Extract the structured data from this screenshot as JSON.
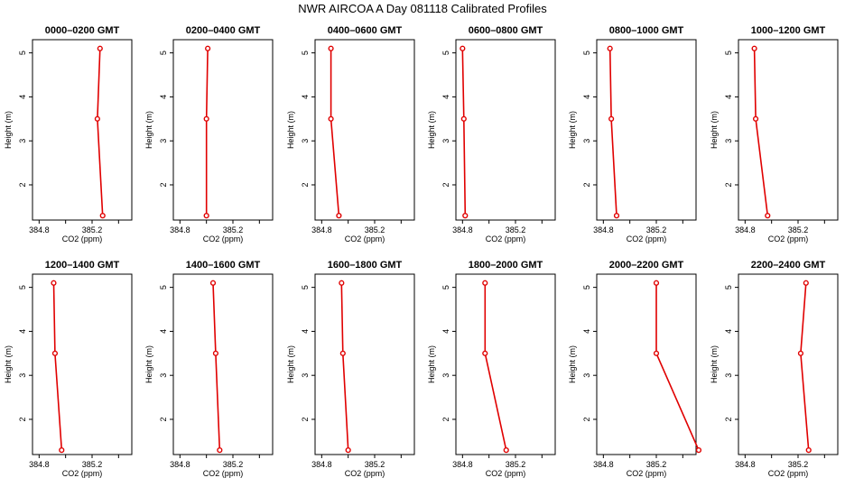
{
  "title": "NWR AIRCOA A  Day 081118  Calibrated Profiles",
  "colors": {
    "series": "#e00000",
    "axis": "#000000"
  },
  "chart_data": [
    {
      "type": "line",
      "title": "0000–0200 GMT",
      "xlabel": "CO2 (ppm)",
      "ylabel": "Height (m)",
      "xlim": [
        384.75,
        385.5
      ],
      "ylim": [
        1.2,
        5.3
      ],
      "x_ticks": [
        "384.8",
        "385.2"
      ],
      "y_ticks": [
        "2",
        "3",
        "4",
        "5"
      ],
      "x": [
        385.26,
        385.24,
        385.28
      ],
      "y": [
        5.1,
        3.5,
        1.3
      ]
    },
    {
      "type": "line",
      "title": "0200–0400 GMT",
      "xlabel": "CO2 (ppm)",
      "ylabel": "Height (m)",
      "xlim": [
        384.75,
        385.5
      ],
      "ylim": [
        1.2,
        5.3
      ],
      "x_ticks": [
        "384.8",
        "385.2"
      ],
      "y_ticks": [
        "2",
        "3",
        "4",
        "5"
      ],
      "x": [
        385.01,
        385.0,
        385.0
      ],
      "y": [
        5.1,
        3.5,
        1.3
      ]
    },
    {
      "type": "line",
      "title": "0400–0600 GMT",
      "xlabel": "CO2 (ppm)",
      "ylabel": "Height (m)",
      "xlim": [
        384.75,
        385.5
      ],
      "ylim": [
        1.2,
        5.3
      ],
      "x_ticks": [
        "384.8",
        "385.2"
      ],
      "y_ticks": [
        "2",
        "3",
        "4",
        "5"
      ],
      "x": [
        384.87,
        384.87,
        384.93
      ],
      "y": [
        5.1,
        3.5,
        1.3
      ]
    },
    {
      "type": "line",
      "title": "0600–0800 GMT",
      "xlabel": "CO2 (ppm)",
      "ylabel": "Height (m)",
      "xlim": [
        384.75,
        385.5
      ],
      "ylim": [
        1.2,
        5.3
      ],
      "x_ticks": [
        "384.8",
        "385.2"
      ],
      "y_ticks": [
        "2",
        "3",
        "4",
        "5"
      ],
      "x": [
        384.8,
        384.81,
        384.82
      ],
      "y": [
        5.1,
        3.5,
        1.3
      ]
    },
    {
      "type": "line",
      "title": "0800–1000 GMT",
      "xlabel": "CO2 (ppm)",
      "ylabel": "Height (m)",
      "xlim": [
        384.75,
        385.5
      ],
      "ylim": [
        1.2,
        5.3
      ],
      "x_ticks": [
        "384.8",
        "385.2"
      ],
      "y_ticks": [
        "2",
        "3",
        "4",
        "5"
      ],
      "x": [
        384.85,
        384.86,
        384.9
      ],
      "y": [
        5.1,
        3.5,
        1.3
      ]
    },
    {
      "type": "line",
      "title": "1000–1200 GMT",
      "xlabel": "CO2 (ppm)",
      "ylabel": "Height (m)",
      "xlim": [
        384.75,
        385.5
      ],
      "ylim": [
        1.2,
        5.3
      ],
      "x_ticks": [
        "384.8",
        "385.2"
      ],
      "y_ticks": [
        "2",
        "3",
        "4",
        "5"
      ],
      "x": [
        384.87,
        384.88,
        384.97
      ],
      "y": [
        5.1,
        3.5,
        1.3
      ]
    },
    {
      "type": "line",
      "title": "1200–1400 GMT",
      "xlabel": "CO2 (ppm)",
      "ylabel": "Height (m)",
      "xlim": [
        384.75,
        385.5
      ],
      "ylim": [
        1.2,
        5.3
      ],
      "x_ticks": [
        "384.8",
        "385.2"
      ],
      "y_ticks": [
        "2",
        "3",
        "4",
        "5"
      ],
      "x": [
        384.91,
        384.92,
        384.97
      ],
      "y": [
        5.1,
        3.5,
        1.3
      ]
    },
    {
      "type": "line",
      "title": "1400–1600 GMT",
      "xlabel": "CO2 (ppm)",
      "ylabel": "Height (m)",
      "xlim": [
        384.75,
        385.5
      ],
      "ylim": [
        1.2,
        5.3
      ],
      "x_ticks": [
        "384.8",
        "385.2"
      ],
      "y_ticks": [
        "2",
        "3",
        "4",
        "5"
      ],
      "x": [
        385.05,
        385.07,
        385.1
      ],
      "y": [
        5.1,
        3.5,
        1.3
      ]
    },
    {
      "type": "line",
      "title": "1600–1800 GMT",
      "xlabel": "CO2 (ppm)",
      "ylabel": "Height (m)",
      "xlim": [
        384.75,
        385.5
      ],
      "ylim": [
        1.2,
        5.3
      ],
      "x_ticks": [
        "384.8",
        "385.2"
      ],
      "y_ticks": [
        "2",
        "3",
        "4",
        "5"
      ],
      "x": [
        384.95,
        384.96,
        385.0
      ],
      "y": [
        5.1,
        3.5,
        1.3
      ]
    },
    {
      "type": "line",
      "title": "1800–2000 GMT",
      "xlabel": "CO2 (ppm)",
      "ylabel": "Height (m)",
      "xlim": [
        384.75,
        385.5
      ],
      "ylim": [
        1.2,
        5.3
      ],
      "x_ticks": [
        "384.8",
        "385.2"
      ],
      "y_ticks": [
        "2",
        "3",
        "4",
        "5"
      ],
      "x": [
        384.97,
        384.97,
        385.13
      ],
      "y": [
        5.1,
        3.5,
        1.3
      ]
    },
    {
      "type": "line",
      "title": "2000–2200 GMT",
      "xlabel": "CO2 (ppm)",
      "ylabel": "Height (m)",
      "xlim": [
        384.75,
        385.5
      ],
      "ylim": [
        1.2,
        5.3
      ],
      "x_ticks": [
        "384.8",
        "385.2"
      ],
      "y_ticks": [
        "2",
        "3",
        "4",
        "5"
      ],
      "x": [
        385.2,
        385.2,
        385.52
      ],
      "y": [
        5.1,
        3.5,
        1.3
      ]
    },
    {
      "type": "line",
      "title": "2200–2400 GMT",
      "xlabel": "CO2 (ppm)",
      "ylabel": "Height (m)",
      "xlim": [
        384.75,
        385.5
      ],
      "ylim": [
        1.2,
        5.3
      ],
      "x_ticks": [
        "384.8",
        "385.2"
      ],
      "y_ticks": [
        "2",
        "3",
        "4",
        "5"
      ],
      "x": [
        385.26,
        385.22,
        385.28
      ],
      "y": [
        5.1,
        3.5,
        1.3
      ]
    }
  ]
}
